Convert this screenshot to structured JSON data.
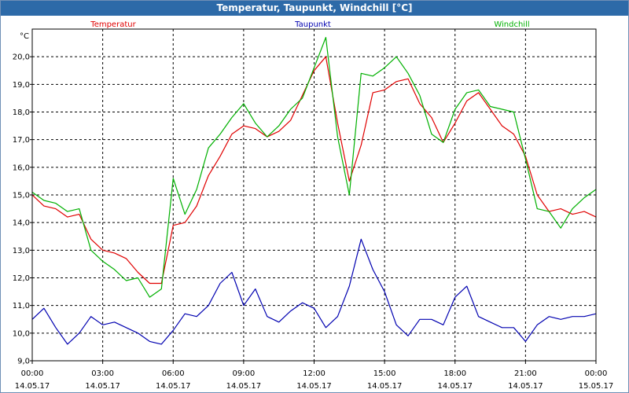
{
  "window": {
    "title": "Temperatur, Taupunkt, Windchill [°C]"
  },
  "chart_data": {
    "type": "line",
    "title": "Temperatur, Taupunkt, Windchill [°C]",
    "ylabel": "°C",
    "ylim": [
      9.0,
      21.0
    ],
    "xlim_hours": [
      0,
      24
    ],
    "grid": true,
    "legend": "top",
    "y_ticks": [
      "9,0",
      "10,0",
      "11,0",
      "12,0",
      "13,0",
      "14,0",
      "15,0",
      "16,0",
      "17,0",
      "18,0",
      "19,0",
      "20,0"
    ],
    "x_ticks": [
      {
        "time": "00:00",
        "date": "14.05.17"
      },
      {
        "time": "03:00",
        "date": "14.05.17"
      },
      {
        "time": "06:00",
        "date": "14.05.17"
      },
      {
        "time": "09:00",
        "date": "14.05.17"
      },
      {
        "time": "12:00",
        "date": "14.05.17"
      },
      {
        "time": "15:00",
        "date": "14.05.17"
      },
      {
        "time": "18:00",
        "date": "14.05.17"
      },
      {
        "time": "21:00",
        "date": "14.05.17"
      },
      {
        "time": "00:00",
        "date": "15.05.17"
      }
    ],
    "x_hours": [
      0,
      0.5,
      1,
      1.5,
      2,
      2.5,
      3,
      3.5,
      4,
      4.5,
      5,
      5.5,
      6,
      6.5,
      7,
      7.5,
      8,
      8.5,
      9,
      9.5,
      10,
      10.5,
      11,
      11.5,
      12,
      12.5,
      13,
      13.5,
      14,
      14.5,
      15,
      15.5,
      16,
      16.5,
      17,
      17.5,
      18,
      18.5,
      19,
      19.5,
      20,
      20.5,
      21,
      21.5,
      22,
      22.5,
      23,
      23.5,
      24
    ],
    "series": [
      {
        "name": "Temperatur",
        "color": "#e00000",
        "values": [
          15.0,
          14.6,
          14.5,
          14.2,
          14.3,
          13.4,
          13.0,
          12.9,
          12.7,
          12.2,
          11.8,
          11.8,
          13.9,
          14.0,
          14.6,
          15.7,
          16.4,
          17.2,
          17.5,
          17.4,
          17.1,
          17.3,
          17.7,
          18.6,
          19.5,
          20.0,
          17.6,
          15.5,
          16.8,
          18.7,
          18.8,
          19.1,
          19.2,
          18.3,
          17.8,
          16.9,
          17.6,
          18.4,
          18.7,
          18.1,
          17.5,
          17.2,
          16.4,
          15.0,
          14.4,
          14.5,
          14.3,
          14.4,
          14.2
        ]
      },
      {
        "name": "Taupunkt",
        "color": "#0000b0",
        "values": [
          10.5,
          10.9,
          10.2,
          9.6,
          10.0,
          10.6,
          10.3,
          10.4,
          10.2,
          10.0,
          9.7,
          9.6,
          10.1,
          10.7,
          10.6,
          11.0,
          11.8,
          12.2,
          11.0,
          11.6,
          10.6,
          10.4,
          10.8,
          11.1,
          10.9,
          10.2,
          10.6,
          11.7,
          13.4,
          12.3,
          11.5,
          10.3,
          9.9,
          10.5,
          10.5,
          10.3,
          11.3,
          11.7,
          10.6,
          10.4,
          10.2,
          10.2,
          9.7,
          10.3,
          10.6,
          10.5,
          10.6,
          10.6,
          10.7
        ]
      },
      {
        "name": "Windchill",
        "color": "#00b000",
        "values": [
          15.1,
          14.8,
          14.7,
          14.4,
          14.5,
          13.0,
          12.6,
          12.3,
          11.9,
          12.0,
          11.3,
          11.6,
          15.6,
          14.3,
          15.2,
          16.7,
          17.2,
          17.8,
          18.3,
          17.6,
          17.1,
          17.5,
          18.1,
          18.5,
          19.6,
          20.7,
          17.1,
          15.0,
          19.4,
          19.3,
          19.6,
          20.0,
          19.4,
          18.6,
          17.2,
          16.9,
          18.1,
          18.7,
          18.8,
          18.2,
          18.1,
          18.0,
          16.3,
          14.5,
          14.4,
          13.8,
          14.5,
          14.9,
          15.2
        ]
      }
    ]
  }
}
